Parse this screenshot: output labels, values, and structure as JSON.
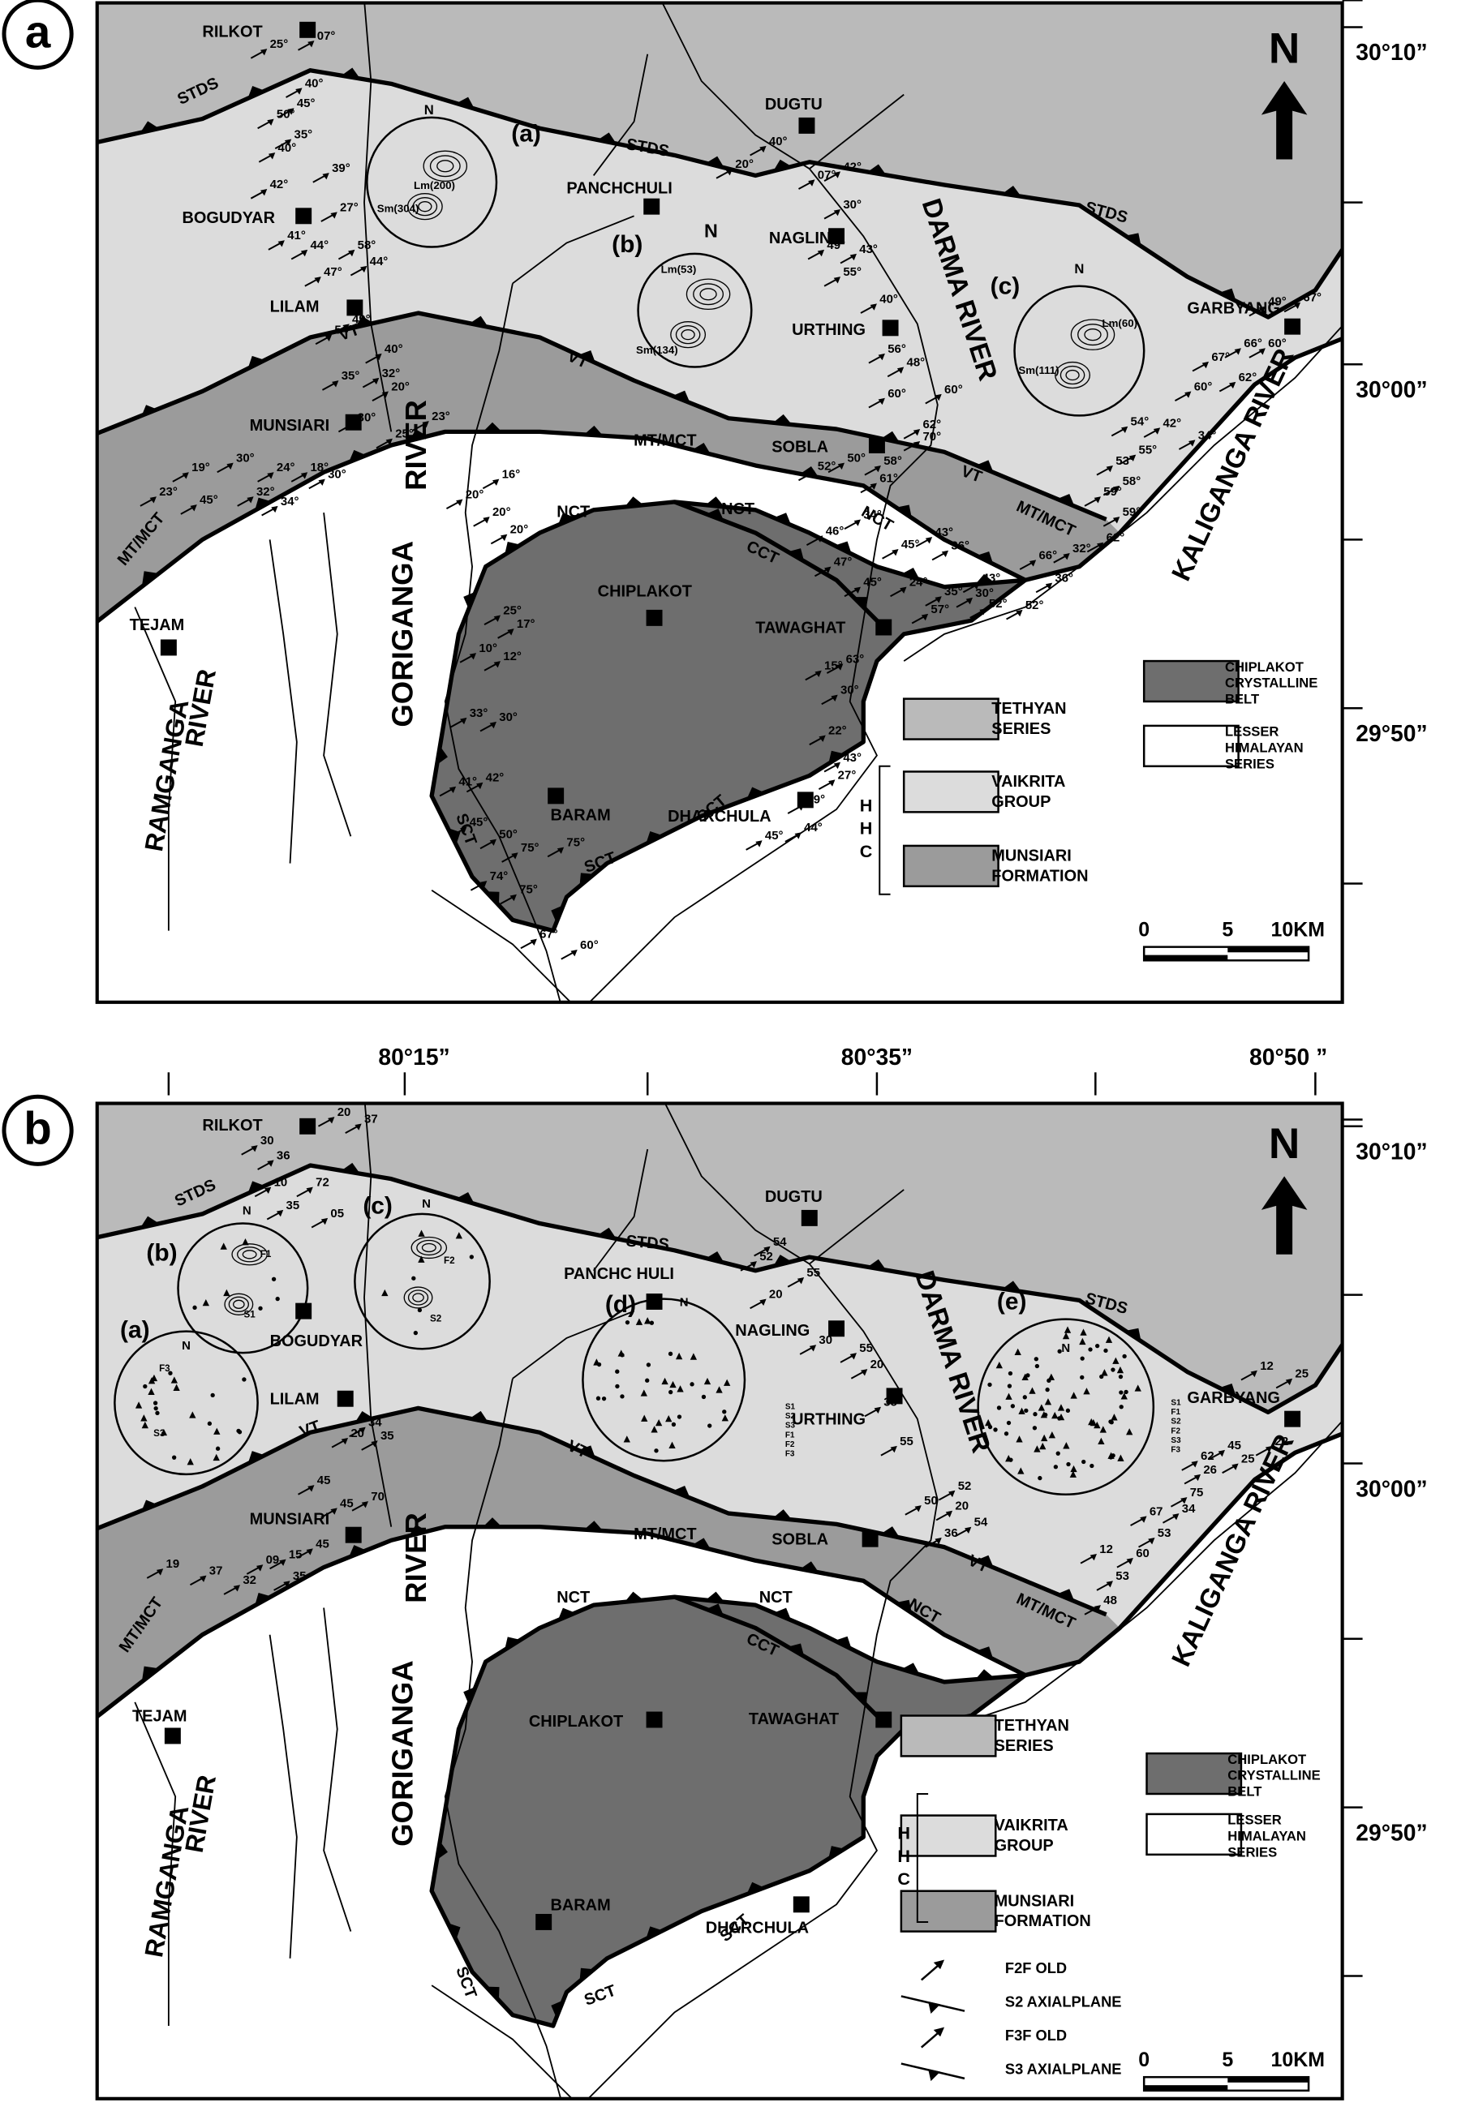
{
  "panel_a": {
    "letter": "a",
    "north": "N",
    "places": [
      "RILKOT",
      "DUGTU",
      "PANCHCHULI",
      "BOGUDYAR",
      "NAGLING",
      "URTHING",
      "LILAM",
      "GARBYANG",
      "MUNSIARI",
      "SOBLA",
      "CHIPLAKOT",
      "TAWAGHAT",
      "TEJAM",
      "BARAM",
      "DHARCHULA"
    ],
    "structures": [
      "STDS",
      "STDS",
      "STDS",
      "VT",
      "VT",
      "VT",
      "MT/MCT",
      "MT/MCT",
      "MT/MCT",
      "NCT",
      "NCT",
      "NCT",
      "CCT",
      "SCT",
      "SCT",
      "SCT"
    ],
    "rivers": [
      "DARMA RIVER",
      "KALIGANGA RIVER",
      "GORIGANGA",
      "RIVER",
      "RAMGANGA",
      "RIVER"
    ],
    "stereonets": [
      "(a)",
      "N",
      "Lm(200)",
      "Sm(304)",
      "(b)",
      "N",
      "Lm(53)",
      "Sm(134)",
      "(c)",
      "N",
      "Lm(60)",
      "Sm(111)"
    ],
    "latitudes": [
      "30°10”",
      "30°00”",
      "29°50”"
    ],
    "legend": [
      [
        "TETHYAN",
        "SERIES"
      ],
      [
        "VAIKRITA",
        "GROUP"
      ],
      [
        "MUNSIARI",
        "FORMATION"
      ],
      [
        "CHIPLAKOT",
        "CRYSTALLINE",
        "BELT"
      ],
      [
        "LESSER",
        "HIMALAYAN",
        "SERIES"
      ]
    ],
    "hhc": [
      "H",
      "H",
      "C"
    ],
    "scale": [
      "0",
      "5",
      "10KM"
    ],
    "dips": [
      "25°",
      "07°",
      "40°",
      "45°",
      "50°",
      "35°",
      "40°",
      "39°",
      "42°",
      "27°",
      "41°",
      "44°",
      "58°",
      "44°",
      "47°",
      "54°",
      "49°",
      "40°",
      "32°",
      "35°",
      "20°",
      "30°",
      "25°",
      "23°",
      "19°",
      "30°",
      "24°",
      "23°",
      "32°",
      "45°",
      "34°",
      "18°",
      "30°",
      "20°",
      "16°",
      "20°",
      "20°",
      "25°",
      "17°",
      "10°",
      "12°",
      "33°",
      "30°",
      "41°",
      "42°",
      "45°",
      "50°",
      "75°",
      "75°",
      "74°",
      "75°",
      "67°",
      "60°",
      "40°",
      "20°",
      "07°",
      "42°",
      "30°",
      "49°",
      "43°",
      "55°",
      "40°",
      "56°",
      "48°",
      "60°",
      "60°",
      "62°",
      "70°",
      "58°",
      "50°",
      "61°",
      "52°",
      "34°",
      "46°",
      "43°",
      "45°",
      "47°",
      "36°",
      "45°",
      "24°",
      "35°",
      "57°",
      "30°",
      "52°",
      "15°",
      "63°",
      "30°",
      "22°",
      "43°",
      "27°",
      "69°",
      "44°",
      "45°",
      "49°",
      "67°",
      "67°",
      "66°",
      "60°",
      "60°",
      "62°",
      "54°",
      "42°",
      "34°",
      "55°",
      "53°",
      "58°",
      "59°",
      "59°",
      "66°",
      "32°",
      "62°",
      "36°",
      "43°",
      "52°"
    ]
  },
  "panel_b": {
    "letter": "b",
    "north": "N",
    "places": [
      "RILKOT",
      "DUGTU",
      "PANCHC HULI",
      "BOGUDYAR",
      "NAGLING",
      "URTHING",
      "LILAM",
      "GARBYANG",
      "MUNSIARI",
      "SOBLA",
      "CHIPLAKOT",
      "TAWAGHAT",
      "TEJAM",
      "BARAM",
      "DHARCHULA"
    ],
    "structures": [
      "STDS",
      "STDS",
      "STDS",
      "VT",
      "VT",
      "VT",
      "MT/MCT",
      "MT/MCT",
      "MT/MCT",
      "NCT",
      "NCT",
      "NCT",
      "CCT",
      "SCT",
      "SCT",
      "SCT"
    ],
    "rivers": [
      "DARMA RIVER",
      "KALIGANGA RIVER",
      "GORIGANGA",
      "RIVER",
      "RAMGANGA",
      "RIVER"
    ],
    "stereonets": [
      "(a)",
      "N",
      "F3",
      "S3",
      "(b)",
      "N",
      "F1",
      "S1",
      "(c)",
      "N",
      "F2",
      "S2",
      "(d)",
      "N",
      "(e)",
      "N"
    ],
    "stereonet_d_key": [
      "S1",
      "S2",
      "S3",
      "F1",
      "F2",
      "F3"
    ],
    "stereonet_e_key": [
      "S1",
      "F1",
      "S2",
      "F2",
      "S3",
      "F3"
    ],
    "latitudes": [
      "30°10”",
      "30°00”",
      "29°50”"
    ],
    "longitudes": [
      "80°15”",
      "80°35”",
      "80°50 ”"
    ],
    "legend": [
      [
        "TETHYAN",
        "SERIES"
      ],
      [
        "VAIKRITA",
        "GROUP"
      ],
      [
        "MUNSIARI",
        "FORMATION"
      ],
      [
        "CHIPLAKOT",
        "CRYSTALLINE",
        "BELT"
      ],
      [
        "LESSER",
        "HIMALAYAN",
        "SERIES"
      ]
    ],
    "hhc": [
      "H",
      "H",
      "C"
    ],
    "symbols": [
      "F2F OLD",
      "S2 AXIALPLANE",
      "F3F OLD",
      "S3 AXIALPLANE"
    ],
    "scale": [
      "0",
      "5",
      "10KM"
    ],
    "dips": [
      "20",
      "37",
      "30",
      "36",
      "10",
      "72",
      "35",
      "05",
      "54",
      "52",
      "55",
      "20",
      "30",
      "55",
      "20",
      "38",
      "55",
      "20",
      "34",
      "35",
      "45",
      "45",
      "70",
      "19",
      "37",
      "32",
      "09",
      "15",
      "45",
      "35",
      "50",
      "52",
      "20",
      "54",
      "36",
      "12",
      "25",
      "45",
      "22",
      "62",
      "26",
      "25",
      "75",
      "34",
      "67",
      "53",
      "12",
      "60",
      "53",
      "48"
    ]
  }
}
